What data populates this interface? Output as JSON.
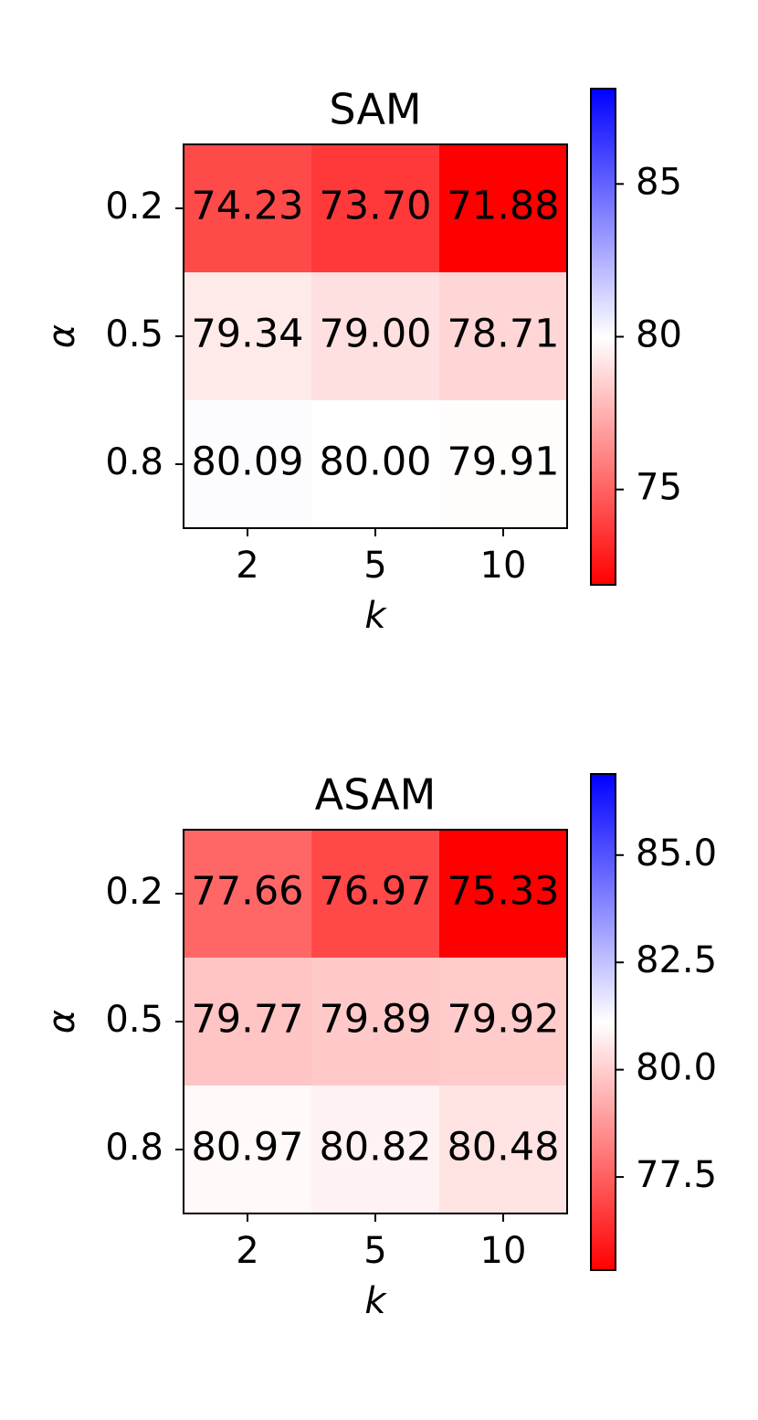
{
  "chart_data": [
    {
      "type": "heatmap",
      "title": "SAM",
      "xlabel": "k",
      "ylabel": "α",
      "colormap": "bwr_r",
      "x": [
        "2",
        "5",
        "10"
      ],
      "y": [
        "0.2",
        "0.5",
        "0.8"
      ],
      "values": [
        [
          74.23,
          73.7,
          71.88
        ],
        [
          79.34,
          79.0,
          78.71
        ],
        [
          80.09,
          80.0,
          79.91
        ]
      ],
      "value_labels": [
        [
          "74.23",
          "73.70",
          "71.88"
        ],
        [
          "79.34",
          "79.00",
          "78.71"
        ],
        [
          "80.09",
          "80.00",
          "79.91"
        ]
      ],
      "zlim": [
        71.88,
        88.12
      ],
      "zticks": [
        75,
        80,
        85
      ]
    },
    {
      "type": "heatmap",
      "title": "ASAM",
      "xlabel": "k",
      "ylabel": "α",
      "colormap": "bwr_r",
      "x": [
        "2",
        "5",
        "10"
      ],
      "y": [
        "0.2",
        "0.5",
        "0.8"
      ],
      "values": [
        [
          77.66,
          76.97,
          75.33
        ],
        [
          79.77,
          79.89,
          79.92
        ],
        [
          80.97,
          80.82,
          80.48
        ]
      ],
      "value_labels": [
        [
          "77.66",
          "76.97",
          "75.33"
        ],
        [
          "79.77",
          "79.89",
          "79.92"
        ],
        [
          "80.97",
          "80.82",
          "80.48"
        ]
      ],
      "zlim": [
        75.33,
        86.89
      ],
      "zticks": [
        77.5,
        {
          "value": 80,
          "label": "80.0"
        },
        {
          "value": 82.5,
          "label": "82.5"
        },
        {
          "value": 85,
          "label": "85.0"
        }
      ]
    }
  ]
}
